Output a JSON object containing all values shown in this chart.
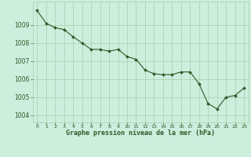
{
  "x": [
    0,
    1,
    2,
    3,
    4,
    5,
    6,
    7,
    8,
    9,
    10,
    11,
    12,
    13,
    14,
    15,
    16,
    17,
    18,
    19,
    20,
    21,
    22,
    23
  ],
  "y": [
    1009.8,
    1009.1,
    1008.85,
    1008.75,
    1008.35,
    1008.0,
    1007.65,
    1007.65,
    1007.55,
    1007.65,
    1007.25,
    1007.1,
    1006.5,
    1006.3,
    1006.25,
    1006.25,
    1006.4,
    1006.4,
    1005.75,
    1004.65,
    1004.35,
    1005.0,
    1005.1,
    1005.5
  ],
  "line_color": "#2d5a27",
  "marker_color": "#2d5a27",
  "bg_color": "#cceedd",
  "grid_color": "#aaccaa",
  "xlabel": "Graphe pression niveau de la mer (hPa)",
  "xlabel_color": "#2d5a27",
  "ylabel_ticks": [
    1004,
    1005,
    1006,
    1007,
    1008,
    1009
  ],
  "xtick_labels": [
    "0",
    "1",
    "2",
    "3",
    "4",
    "5",
    "6",
    "7",
    "8",
    "9",
    "10",
    "11",
    "12",
    "13",
    "14",
    "15",
    "16",
    "17",
    "18",
    "19",
    "20",
    "21",
    "22",
    "23"
  ],
  "ylim": [
    1003.6,
    1010.3
  ],
  "xlim": [
    -0.5,
    23.5
  ]
}
